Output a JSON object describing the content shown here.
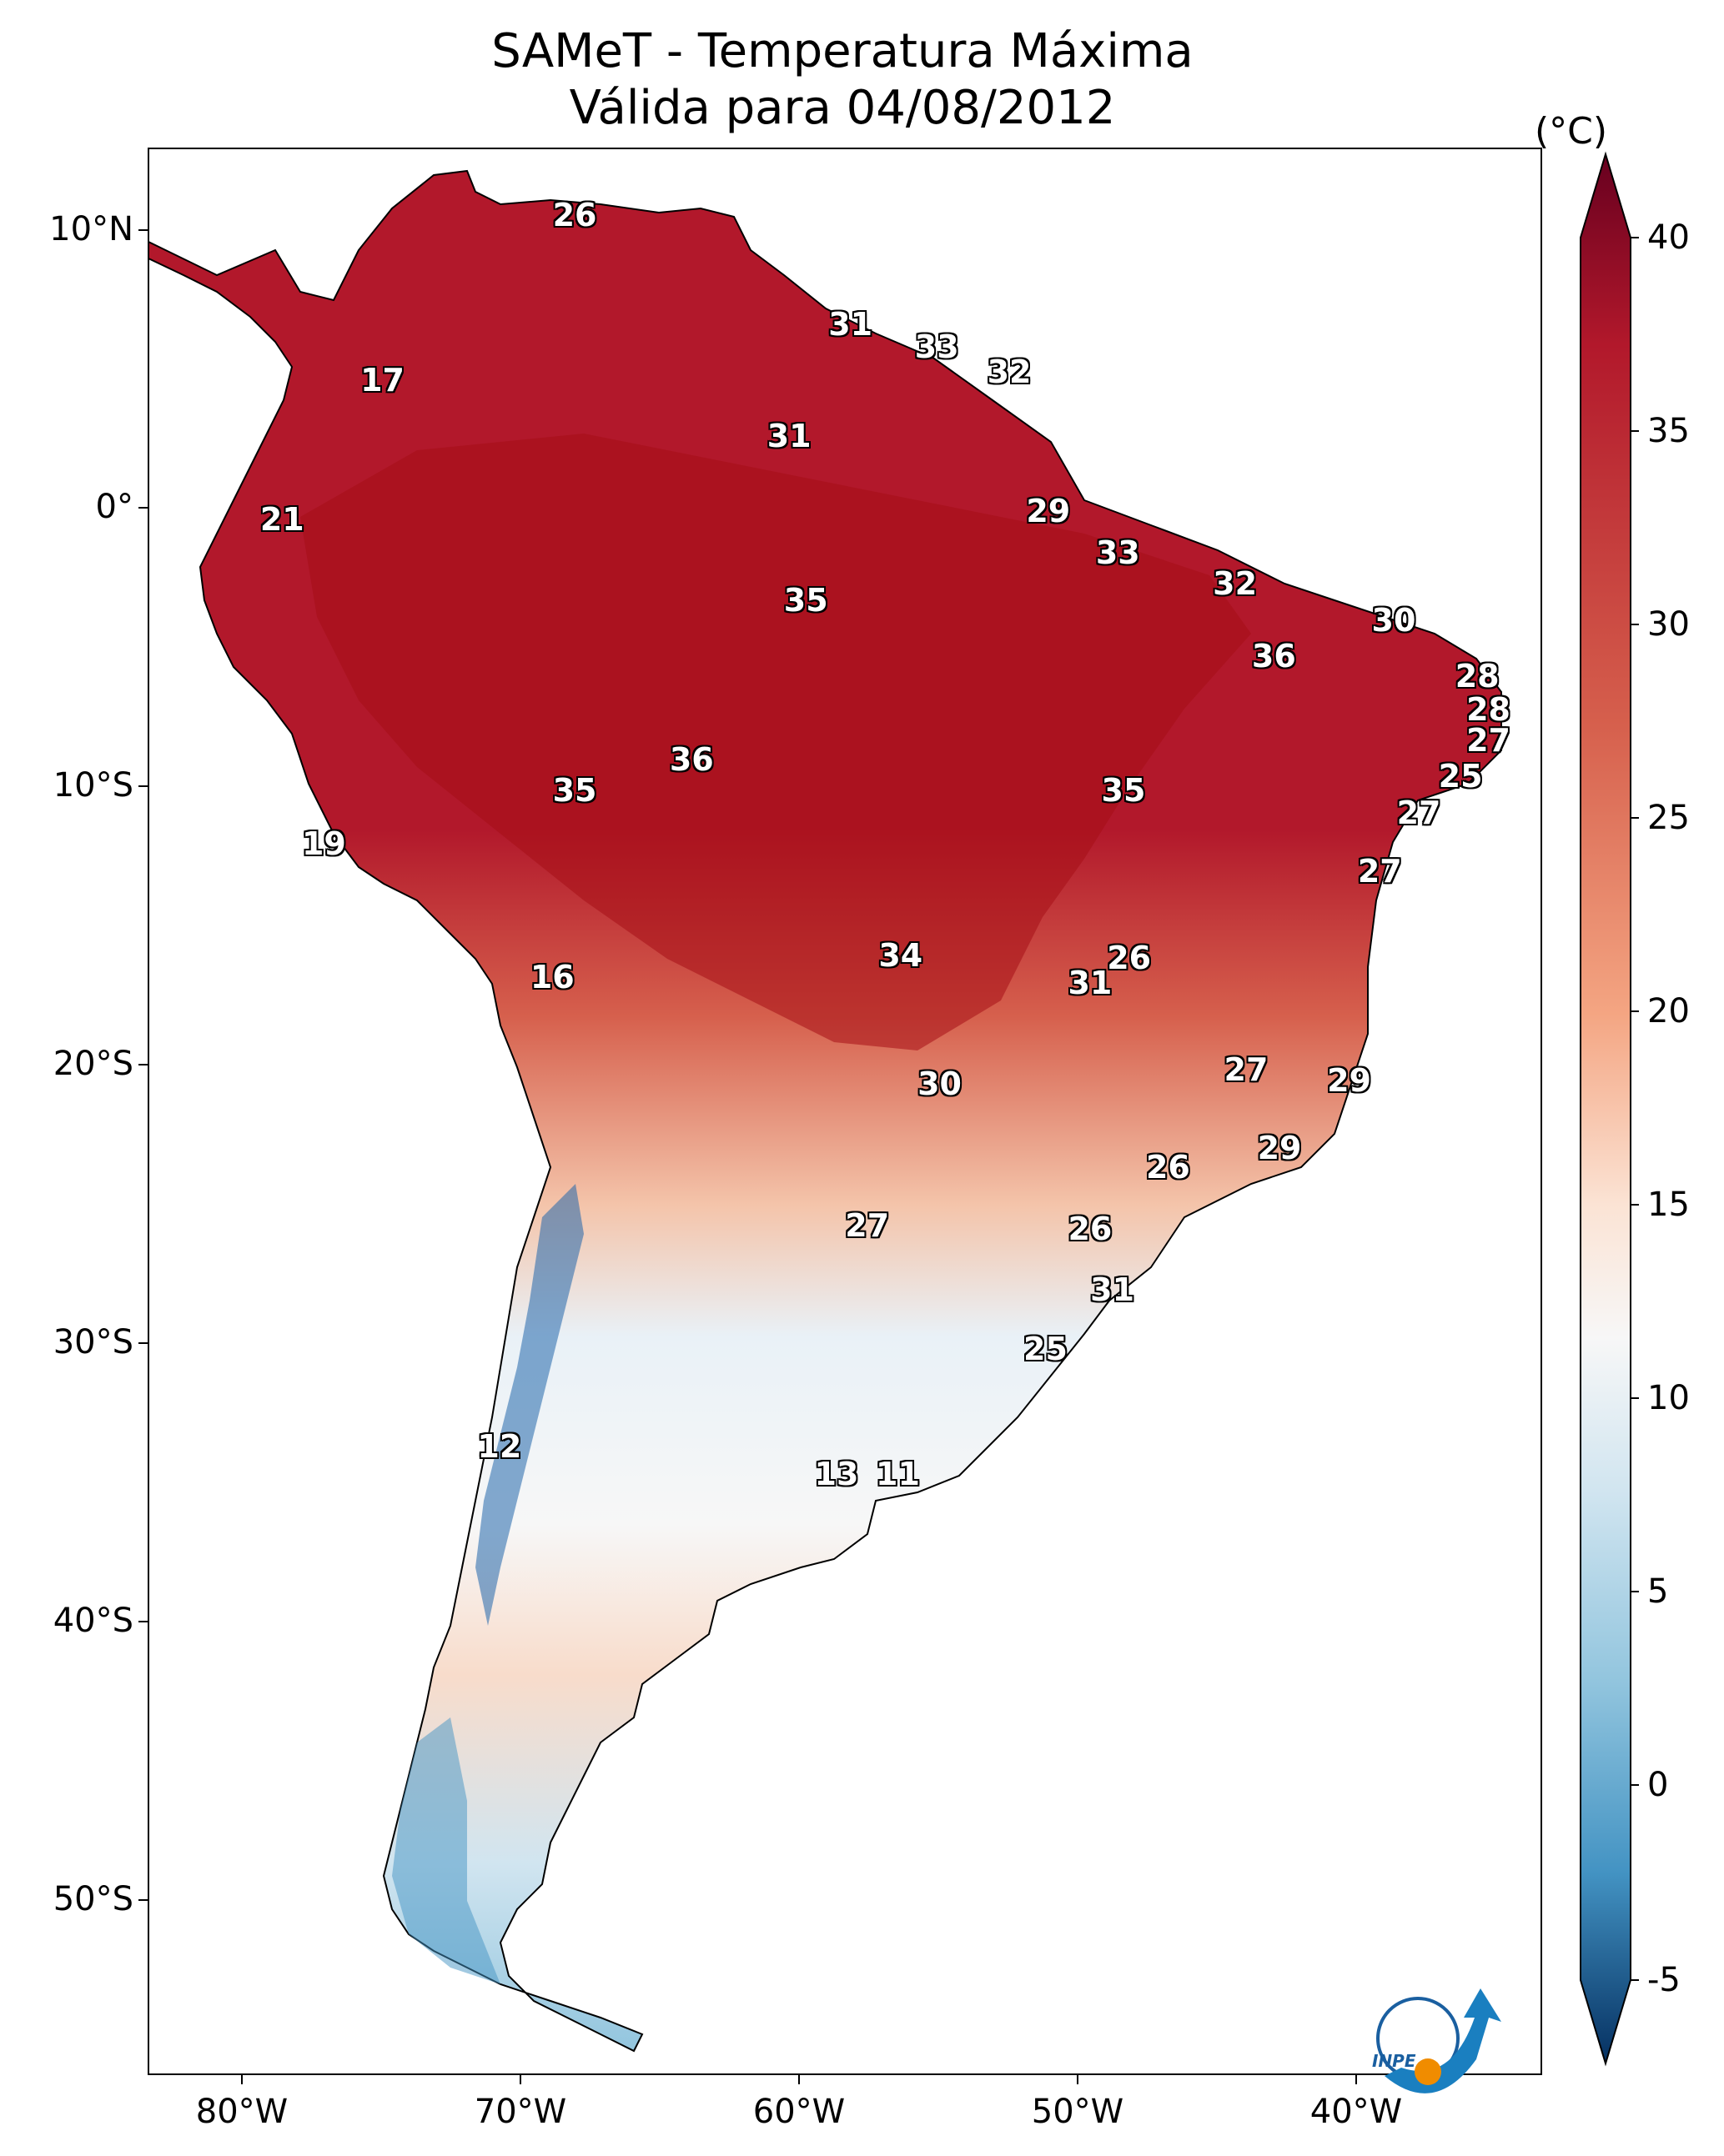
{
  "title": {
    "line1": "SAMeT - Temperatura Máxima",
    "line2": "Válida para 04/08/2012"
  },
  "axes": {
    "lat_labels": [
      "10°N",
      "0°",
      "10°S",
      "20°S",
      "30°S",
      "40°S",
      "50°S"
    ],
    "lon_labels": [
      "80°W",
      "70°W",
      "60°W",
      "50°W",
      "40°W"
    ],
    "lon_range": [
      -83,
      -33
    ],
    "lat_range": [
      -56,
      13
    ]
  },
  "colorbar": {
    "units": "(°C)",
    "ticks": [
      "40",
      "35",
      "30",
      "25",
      "20",
      "15",
      "10",
      "5",
      "0",
      "-5"
    ],
    "range": [
      -5,
      40
    ],
    "cmap": "RdBu_r"
  },
  "colors": {
    "hot": "#67001f",
    "warm": "#d6604d",
    "mild": "#f7f7f7",
    "cool": "#92c5de",
    "cold": "#053061"
  },
  "map_labels": [
    {
      "text": "26",
      "lon": -67.7,
      "lat": 10.6
    },
    {
      "text": "17",
      "lon": -74.6,
      "lat": 4.7
    },
    {
      "text": "21",
      "lon": -78.2,
      "lat": -0.3
    },
    {
      "text": "31",
      "lon": -57.8,
      "lat": 6.7
    },
    {
      "text": "33",
      "lon": -54.7,
      "lat": 5.9
    },
    {
      "text": "32",
      "lon": -52.1,
      "lat": 5.0
    },
    {
      "text": "31",
      "lon": -60.0,
      "lat": 2.7
    },
    {
      "text": "29",
      "lon": -50.7,
      "lat": 0.0
    },
    {
      "text": "33",
      "lon": -48.2,
      "lat": -1.5
    },
    {
      "text": "32",
      "lon": -44.0,
      "lat": -2.6
    },
    {
      "text": "30",
      "lon": -38.3,
      "lat": -3.9
    },
    {
      "text": "35",
      "lon": -59.4,
      "lat": -3.2
    },
    {
      "text": "36",
      "lon": -42.6,
      "lat": -5.2
    },
    {
      "text": "28",
      "lon": -35.3,
      "lat": -5.9
    },
    {
      "text": "28",
      "lon": -34.9,
      "lat": -7.1
    },
    {
      "text": "27",
      "lon": -34.9,
      "lat": -8.2
    },
    {
      "text": "36",
      "lon": -63.5,
      "lat": -8.9
    },
    {
      "text": "35",
      "lon": -67.7,
      "lat": -10.0
    },
    {
      "text": "35",
      "lon": -48.0,
      "lat": -10.0
    },
    {
      "text": "25",
      "lon": -35.9,
      "lat": -9.5
    },
    {
      "text": "27",
      "lon": -37.4,
      "lat": -10.8
    },
    {
      "text": "19",
      "lon": -76.7,
      "lat": -11.9
    },
    {
      "text": "27",
      "lon": -38.8,
      "lat": -12.9
    },
    {
      "text": "34",
      "lon": -56.0,
      "lat": -15.9
    },
    {
      "text": "26",
      "lon": -47.8,
      "lat": -16.0
    },
    {
      "text": "31",
      "lon": -49.2,
      "lat": -16.9
    },
    {
      "text": "16",
      "lon": -68.5,
      "lat": -16.7
    },
    {
      "text": "27",
      "lon": -43.6,
      "lat": -20.0
    },
    {
      "text": "29",
      "lon": -39.9,
      "lat": -20.4
    },
    {
      "text": "30",
      "lon": -54.6,
      "lat": -20.5
    },
    {
      "text": "29",
      "lon": -42.4,
      "lat": -22.8
    },
    {
      "text": "26",
      "lon": -46.4,
      "lat": -23.5
    },
    {
      "text": "27",
      "lon": -57.2,
      "lat": -25.6
    },
    {
      "text": "26",
      "lon": -49.2,
      "lat": -25.7
    },
    {
      "text": "31",
      "lon": -48.4,
      "lat": -27.9
    },
    {
      "text": "25",
      "lon": -50.8,
      "lat": -30.0
    },
    {
      "text": "12",
      "lon": -70.4,
      "lat": -33.5
    },
    {
      "text": "13",
      "lon": -58.3,
      "lat": -34.5
    },
    {
      "text": "11",
      "lon": -56.1,
      "lat": -34.5
    }
  ],
  "logo": {
    "text": "INPE"
  }
}
